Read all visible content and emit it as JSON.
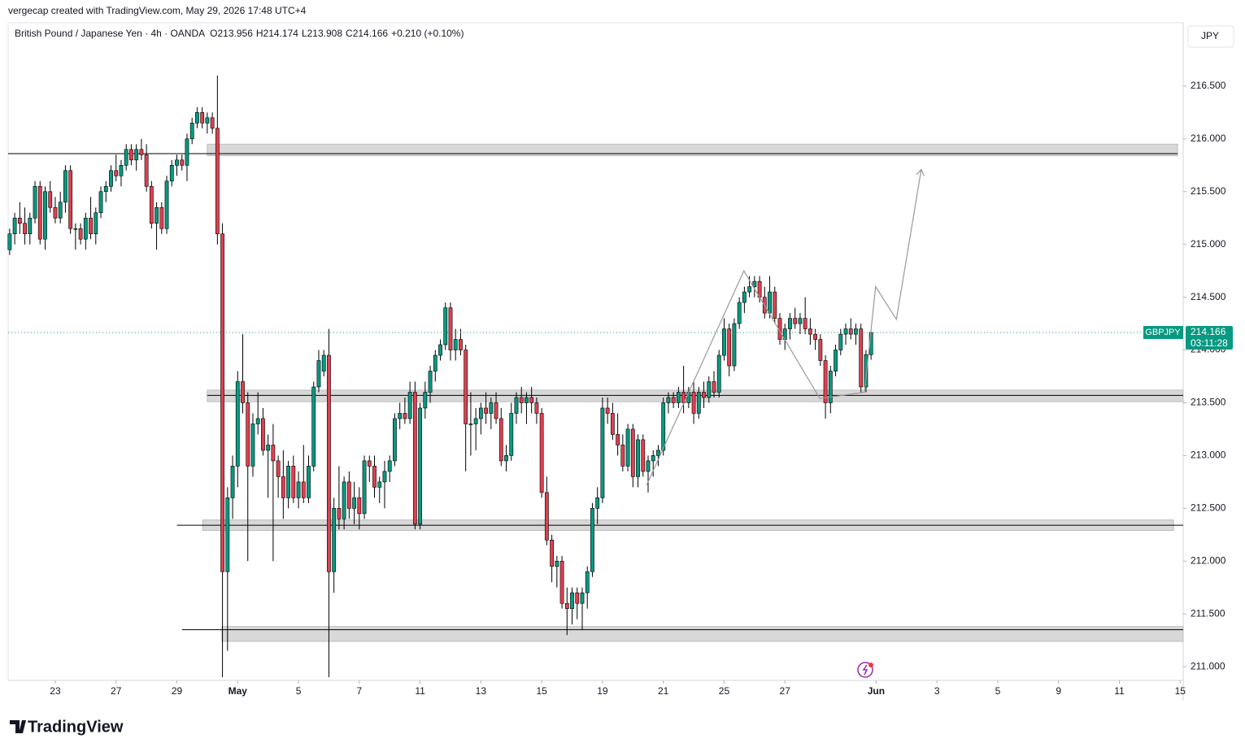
{
  "header": {
    "credit": "vergecap created with TradingView.com, May 29, 2026 17:48 UTC+4",
    "logo": "TradingView"
  },
  "chart_data": {
    "type": "candlestick",
    "title": "British Pound / Japanese Yen · 4h · OANDA",
    "ohlc_labels": [
      "O",
      "H",
      "L",
      "C"
    ],
    "change": "+0.210 (+0.10%)",
    "currency": "JPY",
    "symbol": "GBPJPY",
    "countdown": "03:11:28",
    "up_color": "#089981",
    "down_color": "#e0404f",
    "ohlc": [
      [
        214.95,
        215.15,
        214.9,
        215.1
      ],
      [
        215.1,
        215.3,
        215.0,
        215.25
      ],
      [
        215.25,
        215.4,
        215.1,
        215.2
      ],
      [
        215.2,
        215.35,
        215.0,
        215.1
      ],
      [
        215.1,
        215.3,
        215.0,
        215.25
      ],
      [
        215.25,
        215.6,
        215.2,
        215.55
      ],
      [
        215.55,
        215.6,
        215.0,
        215.05
      ],
      [
        215.05,
        215.55,
        214.95,
        215.5
      ],
      [
        215.5,
        215.6,
        215.3,
        215.35
      ],
      [
        215.35,
        215.45,
        215.2,
        215.25
      ],
      [
        215.25,
        215.5,
        215.2,
        215.4
      ],
      [
        215.4,
        215.75,
        215.3,
        215.7
      ],
      [
        215.7,
        215.75,
        215.1,
        215.15
      ],
      [
        215.15,
        215.2,
        214.95,
        215.15
      ],
      [
        215.15,
        215.2,
        215.0,
        215.05
      ],
      [
        215.05,
        215.3,
        214.95,
        215.25
      ],
      [
        215.25,
        215.45,
        215.05,
        215.1
      ],
      [
        215.1,
        215.35,
        215.0,
        215.3
      ],
      [
        215.3,
        215.55,
        215.25,
        215.5
      ],
      [
        215.5,
        215.6,
        215.4,
        215.55
      ],
      [
        215.55,
        215.75,
        215.5,
        215.7
      ],
      [
        215.7,
        215.85,
        215.6,
        215.65
      ],
      [
        215.65,
        215.8,
        215.55,
        215.75
      ],
      [
        215.75,
        215.95,
        215.7,
        215.9
      ],
      [
        215.9,
        215.95,
        215.75,
        215.8
      ],
      [
        215.8,
        215.95,
        215.7,
        215.9
      ],
      [
        215.9,
        216.0,
        215.8,
        215.85
      ],
      [
        215.85,
        215.95,
        215.5,
        215.55
      ],
      [
        215.55,
        215.6,
        215.15,
        215.2
      ],
      [
        215.2,
        215.4,
        214.95,
        215.35
      ],
      [
        215.35,
        215.4,
        215.1,
        215.15
      ],
      [
        215.15,
        215.65,
        215.1,
        215.6
      ],
      [
        215.6,
        215.8,
        215.55,
        215.75
      ],
      [
        215.75,
        215.85,
        215.65,
        215.8
      ],
      [
        215.8,
        215.85,
        215.7,
        215.75
      ],
      [
        215.75,
        216.05,
        215.6,
        216.0
      ],
      [
        216.0,
        216.2,
        215.95,
        216.15
      ],
      [
        216.15,
        216.3,
        216.1,
        216.25
      ],
      [
        216.25,
        216.3,
        216.1,
        216.15
      ],
      [
        216.15,
        216.25,
        216.05,
        216.2
      ],
      [
        216.2,
        216.25,
        216.05,
        216.1
      ],
      [
        216.1,
        216.6,
        215.0,
        215.1
      ],
      [
        215.1,
        215.2,
        210.9,
        211.9
      ],
      [
        211.9,
        212.7,
        211.15,
        212.6
      ],
      [
        212.6,
        213.0,
        212.4,
        212.9
      ],
      [
        212.9,
        213.8,
        212.7,
        213.7
      ],
      [
        213.7,
        214.15,
        213.4,
        213.5
      ],
      [
        213.5,
        213.6,
        212.0,
        212.9
      ],
      [
        212.9,
        213.4,
        212.8,
        213.3
      ],
      [
        213.3,
        213.6,
        213.2,
        213.35
      ],
      [
        213.35,
        213.45,
        213.0,
        213.05
      ],
      [
        213.05,
        213.2,
        212.6,
        213.1
      ],
      [
        213.1,
        213.3,
        212.0,
        212.95
      ],
      [
        212.95,
        213.0,
        212.6,
        212.8
      ],
      [
        212.8,
        213.05,
        212.4,
        212.6
      ],
      [
        212.6,
        212.95,
        212.5,
        212.9
      ],
      [
        212.9,
        213.0,
        212.55,
        212.6
      ],
      [
        212.6,
        212.85,
        212.5,
        212.75
      ],
      [
        212.75,
        213.1,
        212.55,
        212.6
      ],
      [
        212.6,
        213.0,
        212.55,
        212.9
      ],
      [
        212.9,
        213.7,
        212.85,
        213.65
      ],
      [
        213.65,
        214.0,
        213.6,
        213.9
      ],
      [
        213.8,
        214.0,
        213.75,
        213.95
      ],
      [
        213.95,
        214.2,
        210.9,
        211.9
      ],
      [
        211.9,
        212.6,
        211.7,
        212.5
      ],
      [
        212.5,
        212.9,
        212.3,
        212.4
      ],
      [
        212.4,
        212.8,
        212.3,
        212.75
      ],
      [
        212.75,
        212.85,
        212.4,
        212.5
      ],
      [
        212.5,
        212.75,
        212.35,
        212.6
      ],
      [
        212.6,
        212.7,
        212.3,
        212.45
      ],
      [
        212.45,
        213.0,
        212.4,
        212.95
      ],
      [
        212.95,
        213.0,
        212.75,
        212.9
      ],
      [
        212.9,
        213.0,
        212.6,
        212.7
      ],
      [
        212.7,
        212.8,
        212.55,
        212.75
      ],
      [
        212.75,
        212.95,
        212.5,
        212.85
      ],
      [
        212.85,
        213.0,
        212.75,
        212.95
      ],
      [
        212.95,
        213.4,
        212.9,
        213.35
      ],
      [
        213.35,
        213.5,
        213.25,
        213.4
      ],
      [
        213.4,
        213.55,
        213.3,
        213.35
      ],
      [
        213.35,
        213.7,
        213.3,
        213.6
      ],
      [
        213.6,
        213.7,
        212.3,
        212.35
      ],
      [
        212.35,
        213.5,
        212.3,
        213.45
      ],
      [
        213.45,
        213.7,
        213.35,
        213.6
      ],
      [
        213.6,
        213.85,
        213.5,
        213.8
      ],
      [
        213.8,
        214.0,
        213.7,
        213.95
      ],
      [
        213.95,
        214.1,
        213.9,
        214.05
      ],
      [
        214.05,
        214.45,
        214.0,
        214.4
      ],
      [
        214.4,
        214.45,
        213.9,
        214.0
      ],
      [
        214.0,
        214.2,
        213.9,
        214.1
      ],
      [
        214.1,
        214.2,
        213.95,
        214.0
      ],
      [
        214.0,
        214.05,
        212.85,
        213.3
      ],
      [
        213.3,
        213.6,
        213.0,
        213.3
      ],
      [
        213.3,
        213.45,
        213.05,
        213.35
      ],
      [
        213.35,
        213.5,
        213.2,
        213.45
      ],
      [
        213.45,
        213.6,
        213.3,
        213.4
      ],
      [
        213.4,
        213.55,
        213.25,
        213.5
      ],
      [
        213.5,
        213.6,
        213.3,
        213.35
      ],
      [
        213.35,
        213.45,
        212.9,
        212.95
      ],
      [
        212.95,
        213.1,
        212.85,
        213.0
      ],
      [
        213.0,
        213.5,
        212.95,
        213.4
      ],
      [
        213.4,
        213.6,
        213.3,
        213.55
      ],
      [
        213.55,
        213.65,
        213.4,
        213.5
      ],
      [
        213.5,
        213.6,
        213.3,
        213.55
      ],
      [
        213.55,
        213.65,
        213.4,
        213.5
      ],
      [
        213.5,
        213.55,
        213.3,
        213.4
      ],
      [
        213.4,
        213.45,
        212.6,
        212.65
      ],
      [
        212.65,
        212.8,
        212.15,
        212.2
      ],
      [
        212.2,
        212.25,
        211.8,
        211.95
      ],
      [
        211.95,
        212.05,
        211.75,
        212.0
      ],
      [
        212.0,
        212.05,
        211.55,
        211.6
      ],
      [
        211.6,
        211.75,
        211.3,
        211.55
      ],
      [
        211.55,
        211.75,
        211.4,
        211.7
      ],
      [
        211.7,
        211.75,
        211.45,
        211.6
      ],
      [
        211.6,
        211.75,
        211.35,
        211.7
      ],
      [
        211.7,
        211.95,
        211.55,
        211.9
      ],
      [
        211.9,
        212.55,
        211.85,
        212.5
      ],
      [
        212.5,
        212.7,
        212.35,
        212.6
      ],
      [
        212.6,
        213.55,
        212.55,
        213.45
      ],
      [
        213.45,
        213.55,
        213.3,
        213.4
      ],
      [
        213.4,
        213.5,
        213.15,
        213.2
      ],
      [
        213.2,
        213.4,
        213.0,
        213.1
      ],
      [
        213.1,
        213.2,
        212.85,
        212.9
      ],
      [
        212.9,
        213.3,
        212.85,
        213.25
      ],
      [
        213.25,
        213.3,
        212.7,
        212.8
      ],
      [
        212.8,
        213.2,
        212.7,
        213.15
      ],
      [
        213.15,
        213.2,
        212.8,
        212.85
      ],
      [
        212.85,
        213.0,
        212.65,
        212.95
      ],
      [
        212.95,
        213.05,
        212.8,
        213.0
      ],
      [
        213.0,
        213.1,
        212.9,
        213.05
      ],
      [
        213.05,
        213.55,
        213.0,
        213.5
      ],
      [
        213.5,
        213.6,
        213.4,
        213.55
      ],
      [
        213.55,
        213.6,
        213.45,
        213.5
      ],
      [
        213.5,
        213.65,
        213.45,
        213.6
      ],
      [
        213.6,
        213.85,
        213.4,
        213.5
      ],
      [
        213.5,
        213.65,
        213.45,
        213.6
      ],
      [
        213.6,
        213.7,
        213.3,
        213.4
      ],
      [
        213.4,
        213.65,
        213.35,
        213.6
      ],
      [
        213.6,
        213.7,
        213.45,
        213.55
      ],
      [
        213.55,
        213.75,
        213.5,
        213.7
      ],
      [
        213.7,
        213.8,
        213.55,
        213.6
      ],
      [
        213.6,
        214.0,
        213.55,
        213.95
      ],
      [
        213.95,
        214.3,
        213.9,
        214.2
      ],
      [
        214.2,
        214.25,
        213.75,
        213.85
      ],
      [
        213.85,
        214.3,
        213.8,
        214.25
      ],
      [
        214.25,
        214.5,
        214.2,
        214.45
      ],
      [
        214.45,
        214.6,
        214.35,
        214.55
      ],
      [
        214.55,
        214.7,
        214.5,
        214.6
      ],
      [
        214.6,
        214.7,
        214.5,
        214.65
      ],
      [
        214.65,
        214.7,
        214.45,
        214.5
      ],
      [
        214.5,
        214.6,
        214.3,
        214.35
      ],
      [
        214.35,
        214.7,
        214.3,
        214.55
      ],
      [
        214.55,
        214.6,
        214.25,
        214.3
      ],
      [
        214.3,
        214.35,
        214.05,
        214.1
      ],
      [
        214.1,
        214.25,
        214.0,
        214.2
      ],
      [
        214.2,
        214.35,
        214.1,
        214.3
      ],
      [
        214.3,
        214.4,
        214.2,
        214.25
      ],
      [
        214.25,
        214.35,
        214.15,
        214.3
      ],
      [
        214.3,
        214.5,
        214.15,
        214.2
      ],
      [
        214.2,
        214.3,
        214.05,
        214.15
      ],
      [
        214.15,
        214.2,
        214.0,
        214.1
      ],
      [
        214.1,
        214.15,
        213.85,
        213.9
      ],
      [
        213.9,
        213.95,
        213.35,
        213.5
      ],
      [
        213.5,
        213.85,
        213.4,
        213.8
      ],
      [
        213.8,
        214.05,
        213.75,
        214.0
      ],
      [
        214.0,
        214.2,
        213.95,
        214.15
      ],
      [
        214.15,
        214.25,
        214.05,
        214.2
      ],
      [
        214.2,
        214.3,
        214.1,
        214.15
      ],
      [
        214.15,
        214.25,
        214.05,
        214.2
      ],
      [
        214.2,
        214.25,
        213.6,
        213.65
      ],
      [
        213.65,
        214.0,
        213.6,
        213.956
      ],
      [
        213.956,
        214.174,
        213.908,
        214.166
      ]
    ],
    "xlim": [
      -0.3,
      231.6
    ],
    "ylim": [
      210.87,
      217.1
    ],
    "xticks": [
      {
        "value": 9,
        "label": "23"
      },
      {
        "value": 21,
        "label": "27"
      },
      {
        "value": 33,
        "label": "29"
      },
      {
        "value": 45,
        "label": "May"
      },
      {
        "value": 57,
        "label": "5"
      },
      {
        "value": 69,
        "label": "7"
      },
      {
        "value": 81,
        "label": "11"
      },
      {
        "value": 93,
        "label": "13"
      },
      {
        "value": 105,
        "label": "15"
      },
      {
        "value": 117,
        "label": "19"
      },
      {
        "value": 129,
        "label": "21"
      },
      {
        "value": 141,
        "label": "25"
      },
      {
        "value": 153,
        "label": "27"
      },
      {
        "value": 171,
        "label": "Jun"
      },
      {
        "value": 183,
        "label": "3"
      },
      {
        "value": 195,
        "label": "5"
      },
      {
        "value": 207,
        "label": "9"
      },
      {
        "value": 219,
        "label": "11"
      },
      {
        "value": 231,
        "label": "15"
      }
    ],
    "yticks": [
      {
        "value": 211,
        "label": "211.000"
      },
      {
        "value": 211.5,
        "label": "211.500"
      },
      {
        "value": 212,
        "label": "212.000"
      },
      {
        "value": 212.5,
        "label": "212.500"
      },
      {
        "value": 213,
        "label": "213.000"
      },
      {
        "value": 213.5,
        "label": "213.500"
      },
      {
        "value": 214,
        "label": "214.000"
      },
      {
        "value": 214.5,
        "label": "214.500"
      },
      {
        "value": 215,
        "label": "215.000"
      },
      {
        "value": 215.5,
        "label": "215.500"
      },
      {
        "value": 216,
        "label": "216.000"
      },
      {
        "value": 216.5,
        "label": "216.500"
      }
    ],
    "zones": [
      {
        "low": 215.84,
        "high": 215.95,
        "start": 39.0,
        "end": 230.5
      },
      {
        "low": 213.51,
        "high": 213.62,
        "start": 39.0,
        "end": 231.6
      },
      {
        "low": 212.29,
        "high": 212.39,
        "start": 38.1,
        "end": 229.7
      },
      {
        "low": 211.24,
        "high": 211.38,
        "start": 41.9,
        "end": 231.6
      }
    ],
    "levels": [
      {
        "price": 215.86,
        "start": -0.3,
        "end": 230.5
      },
      {
        "price": 213.57,
        "start": 39.0,
        "end": 231.6
      },
      {
        "price": 212.34,
        "start": 33.0,
        "end": 231.6
      },
      {
        "price": 211.35,
        "start": 34.0,
        "end": 231.6
      }
    ],
    "projection": {
      "x": [
        125.7,
        144.9,
        159.9,
        168.7,
        170.9,
        175.0,
        179.9
      ],
      "y": [
        212.72,
        214.75,
        213.54,
        213.6,
        214.6,
        214.29,
        215.71
      ]
    }
  }
}
